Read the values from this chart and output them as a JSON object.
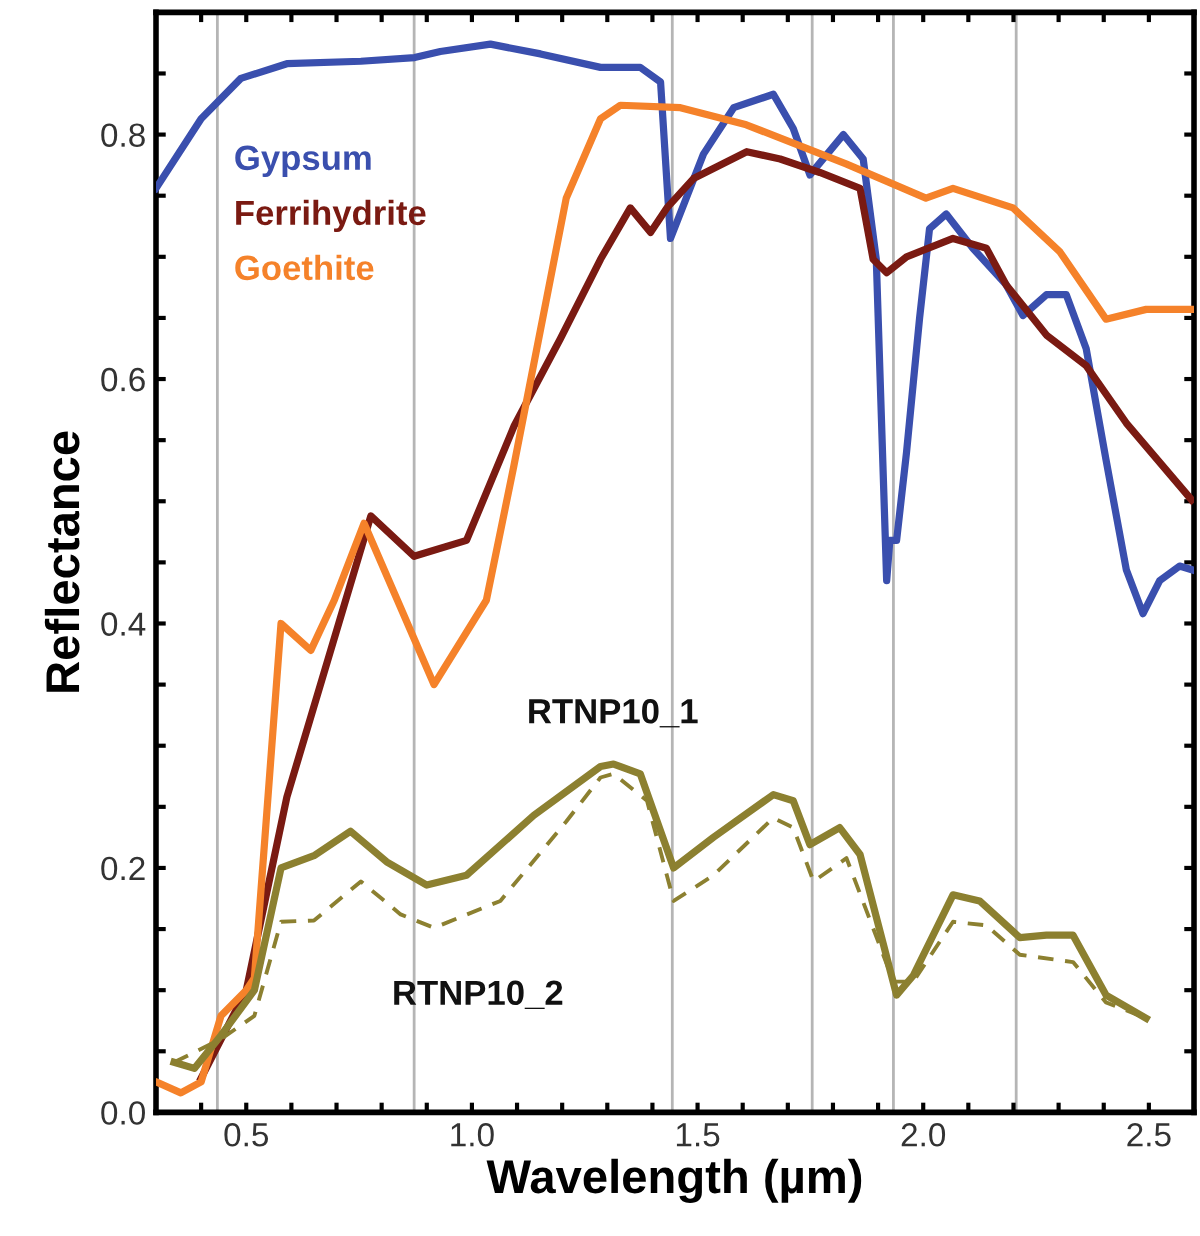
{
  "chart_data": {
    "type": "line",
    "xlabel": "Wavelength (µm)",
    "ylabel": "Reflectance",
    "xlim": [
      0.3,
      2.6
    ],
    "ylim": [
      0,
      0.9
    ],
    "xticks": [
      {
        "value": 0.4,
        "label": null
      },
      {
        "value": 0.5,
        "label": "0.5"
      },
      {
        "value": 0.6,
        "label": null
      },
      {
        "value": 0.7,
        "label": null
      },
      {
        "value": 0.8,
        "label": null
      },
      {
        "value": 0.9,
        "label": null
      },
      {
        "value": 1.0,
        "label": "1.0"
      },
      {
        "value": 1.1,
        "label": null
      },
      {
        "value": 1.2,
        "label": null
      },
      {
        "value": 1.3,
        "label": null
      },
      {
        "value": 1.4,
        "label": null
      },
      {
        "value": 1.5,
        "label": "1.5"
      },
      {
        "value": 1.6,
        "label": null
      },
      {
        "value": 1.7,
        "label": null
      },
      {
        "value": 1.8,
        "label": null
      },
      {
        "value": 1.9,
        "label": null
      },
      {
        "value": 2.0,
        "label": "2.0"
      },
      {
        "value": 2.1,
        "label": null
      },
      {
        "value": 2.2,
        "label": null
      },
      {
        "value": 2.3,
        "label": null
      },
      {
        "value": 2.4,
        "label": null
      },
      {
        "value": 2.5,
        "label": "2.5"
      }
    ],
    "yticks": [
      {
        "value": 0.0,
        "label": "0.0"
      },
      {
        "value": 0.05,
        "label": null
      },
      {
        "value": 0.1,
        "label": null
      },
      {
        "value": 0.15,
        "label": null
      },
      {
        "value": 0.2,
        "label": "0.2"
      },
      {
        "value": 0.25,
        "label": null
      },
      {
        "value": 0.3,
        "label": null
      },
      {
        "value": 0.35,
        "label": null
      },
      {
        "value": 0.4,
        "label": "0.4"
      },
      {
        "value": 0.45,
        "label": null
      },
      {
        "value": 0.5,
        "label": null
      },
      {
        "value": 0.55,
        "label": null
      },
      {
        "value": 0.6,
        "label": "0.6"
      },
      {
        "value": 0.65,
        "label": null
      },
      {
        "value": 0.7,
        "label": null
      },
      {
        "value": 0.75,
        "label": null
      },
      {
        "value": 0.8,
        "label": "0.8"
      },
      {
        "value": 0.85,
        "label": null
      }
    ],
    "grid": false,
    "legend": false,
    "ref_lines": [
      {
        "axis": "x",
        "value": 0.436,
        "color": "#b5b5b5"
      },
      {
        "axis": "x",
        "value": 0.872,
        "color": "#b5b5b5"
      },
      {
        "axis": "x",
        "value": 1.444,
        "color": "#b5b5b5"
      },
      {
        "axis": "x",
        "value": 1.754,
        "color": "#b5b5b5"
      },
      {
        "axis": "x",
        "value": 1.934,
        "color": "#b5b5b5"
      },
      {
        "axis": "x",
        "value": 2.206,
        "color": "#b5b5b5"
      }
    ],
    "series": [
      {
        "name": "Gypsum",
        "color": "#3a4fae",
        "line_style": "solid",
        "x": [
          0.3,
          0.4,
          0.488,
          0.59,
          0.754,
          0.873,
          0.93,
          1.041,
          1.152,
          1.285,
          1.373,
          1.418,
          1.44,
          1.513,
          1.58,
          1.668,
          1.712,
          1.749,
          1.823,
          1.867,
          1.896,
          1.919,
          1.926,
          1.941,
          1.963,
          1.992,
          2.014,
          2.051,
          2.11,
          2.184,
          2.221,
          2.273,
          2.317,
          2.361,
          2.405,
          2.45,
          2.487,
          2.524,
          2.568,
          2.595
        ],
        "values": [
          0.756,
          0.813,
          0.846,
          0.858,
          0.86,
          0.863,
          0.868,
          0.874,
          0.866,
          0.855,
          0.855,
          0.843,
          0.715,
          0.784,
          0.822,
          0.833,
          0.805,
          0.767,
          0.8,
          0.78,
          0.698,
          0.435,
          0.468,
          0.468,
          0.54,
          0.65,
          0.723,
          0.735,
          0.707,
          0.677,
          0.652,
          0.669,
          0.669,
          0.625,
          0.534,
          0.444,
          0.408,
          0.435,
          0.447,
          0.444
        ]
      },
      {
        "name": "Ferrihydrite",
        "color": "#7a1a12",
        "line_style": "solid",
        "x": [
          0.4,
          0.5,
          0.59,
          0.776,
          0.872,
          0.988,
          1.094,
          1.196,
          1.285,
          1.351,
          1.396,
          1.432,
          1.491,
          1.609,
          1.683,
          1.771,
          1.86,
          1.889,
          1.919,
          1.963,
          2.066,
          2.14,
          2.184,
          2.273,
          2.361,
          2.45,
          2.595
        ],
        "values": [
          0.028,
          0.1,
          0.258,
          0.488,
          0.455,
          0.468,
          0.562,
          0.633,
          0.698,
          0.74,
          0.72,
          0.74,
          0.764,
          0.786,
          0.78,
          0.769,
          0.756,
          0.698,
          0.687,
          0.7,
          0.715,
          0.707,
          0.677,
          0.636,
          0.611,
          0.564,
          0.501
        ]
      },
      {
        "name": "Goethite",
        "color": "#f5822a",
        "line_style": "solid",
        "x": [
          0.3,
          0.355,
          0.4,
          0.444,
          0.5,
          0.518,
          0.577,
          0.643,
          0.695,
          0.761,
          0.916,
          1.032,
          1.093,
          1.209,
          1.285,
          1.329,
          1.462,
          1.608,
          1.829,
          2.006,
          2.066,
          2.199,
          2.303,
          2.405,
          2.494,
          2.594
        ],
        "values": [
          0.025,
          0.016,
          0.025,
          0.079,
          0.1,
          0.11,
          0.4,
          0.378,
          0.419,
          0.482,
          0.35,
          0.419,
          0.529,
          0.748,
          0.813,
          0.824,
          0.822,
          0.808,
          0.776,
          0.748,
          0.756,
          0.74,
          0.704,
          0.649,
          0.657,
          0.657
        ]
      },
      {
        "name": "RTNP10_1",
        "color": "#8c8030",
        "line_style": "solid",
        "x": [
          0.34,
          0.385,
          0.444,
          0.518,
          0.577,
          0.65,
          0.731,
          0.811,
          0.9,
          0.988,
          1.137,
          1.285,
          1.314,
          1.373,
          1.447,
          1.535,
          1.668,
          1.712,
          1.749,
          1.815,
          1.86,
          1.941,
          1.978,
          2.066,
          2.125,
          2.214,
          2.273,
          2.332,
          2.405,
          2.494
        ],
        "values": [
          0.041,
          0.036,
          0.063,
          0.1,
          0.2,
          0.21,
          0.23,
          0.205,
          0.186,
          0.194,
          0.243,
          0.283,
          0.285,
          0.277,
          0.2,
          0.225,
          0.26,
          0.255,
          0.219,
          0.233,
          0.211,
          0.096,
          0.112,
          0.178,
          0.173,
          0.143,
          0.145,
          0.145,
          0.096,
          0.077
        ]
      },
      {
        "name": "RTNP10_2",
        "color": "#8c8030",
        "line_style": "dashed",
        "x": [
          0.34,
          0.444,
          0.518,
          0.577,
          0.65,
          0.754,
          0.842,
          0.916,
          1.063,
          1.209,
          1.285,
          1.314,
          1.388,
          1.447,
          1.535,
          1.668,
          1.712,
          1.757,
          1.83,
          1.934,
          1.978,
          2.066,
          2.14,
          2.214,
          2.332,
          2.405,
          2.494
        ],
        "values": [
          0.041,
          0.06,
          0.079,
          0.156,
          0.157,
          0.189,
          0.162,
          0.151,
          0.173,
          0.238,
          0.274,
          0.277,
          0.255,
          0.173,
          0.194,
          0.241,
          0.233,
          0.189,
          0.208,
          0.107,
          0.107,
          0.156,
          0.153,
          0.129,
          0.123,
          0.09,
          0.077
        ]
      }
    ]
  }
}
